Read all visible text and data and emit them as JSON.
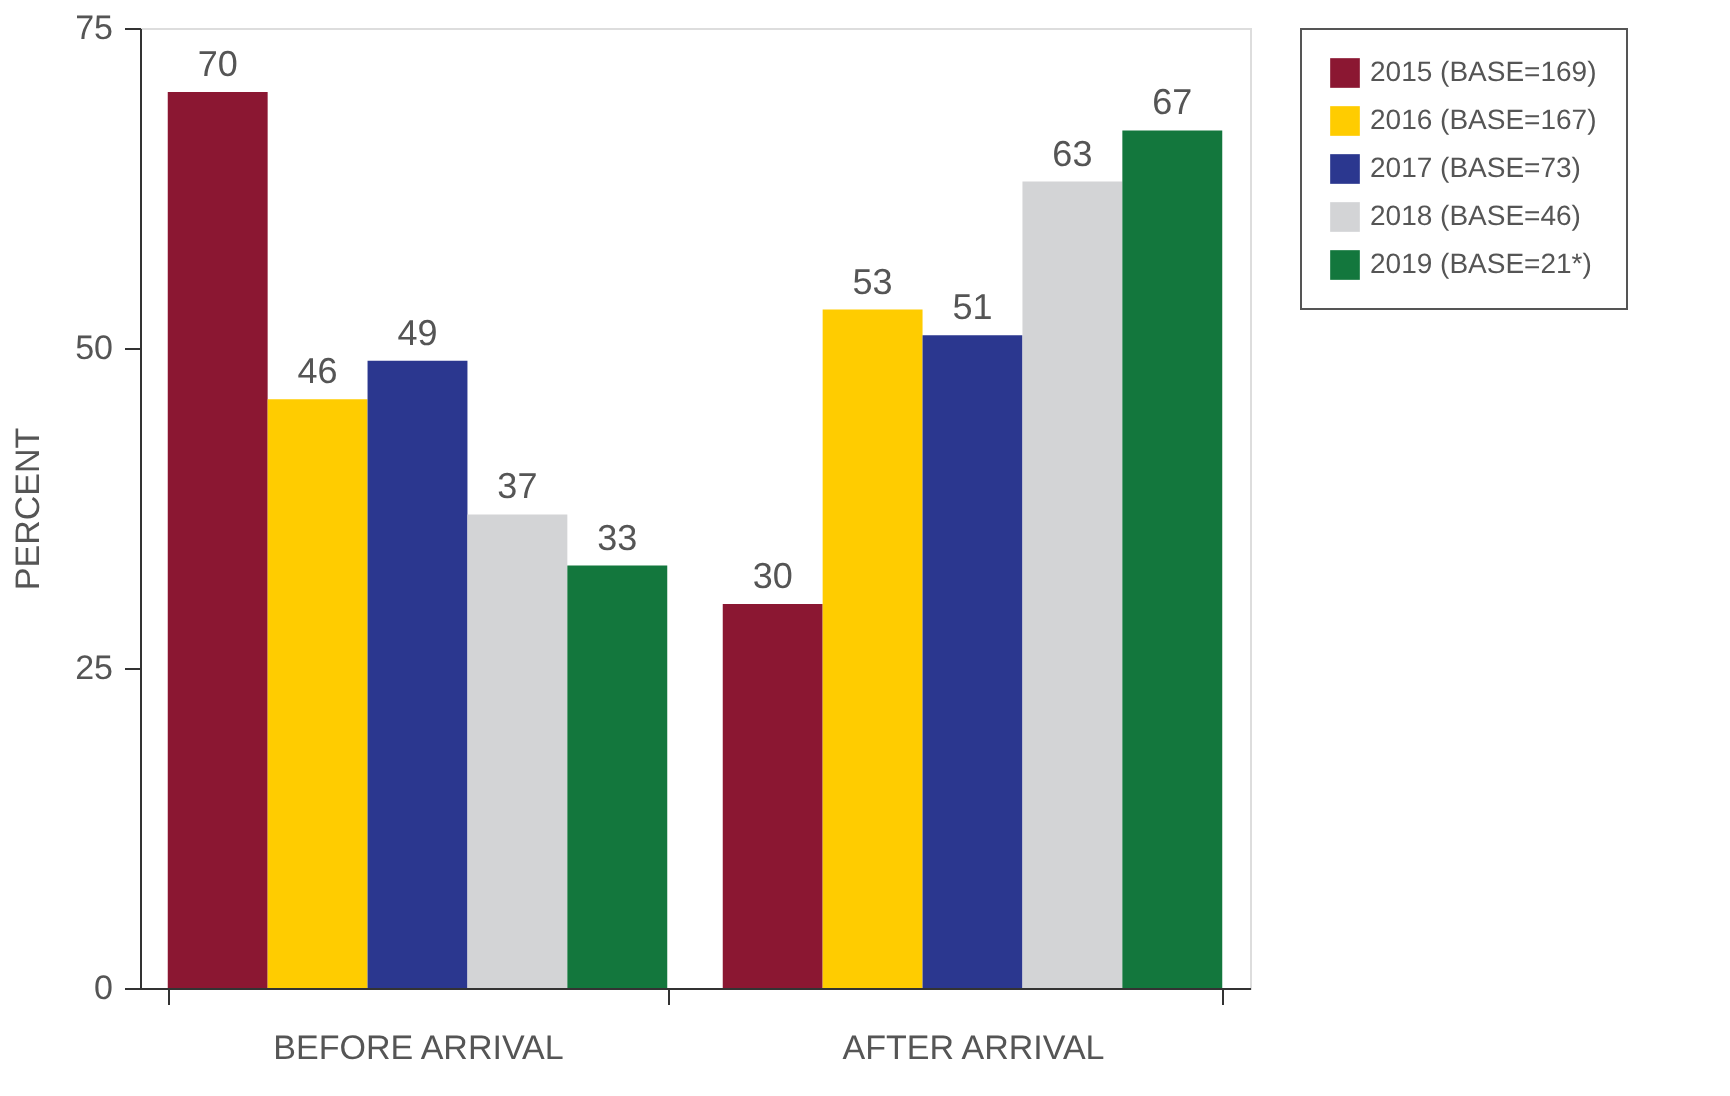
{
  "chart_data": {
    "type": "bar",
    "ylabel": "PERCENT",
    "categories": [
      "BEFORE ARRIVAL",
      "AFTER ARRIVAL"
    ],
    "series": [
      {
        "name": "2015 (BASE=169)",
        "color": "#8b1732",
        "values": [
          70,
          30
        ]
      },
      {
        "name": "2016 (BASE=167)",
        "color": "#ffcc00",
        "values": [
          46,
          53
        ]
      },
      {
        "name": "2017 (BASE=73)",
        "color": "#2b378f",
        "values": [
          49,
          51
        ]
      },
      {
        "name": "2018 (BASE=46)",
        "color": "#d3d4d6",
        "values": [
          37,
          63
        ]
      },
      {
        "name": "2019 (BASE=21*)",
        "color": "#13773d",
        "values": [
          33,
          67
        ]
      }
    ],
    "ylim": [
      0,
      75
    ],
    "yticks": [
      0,
      25,
      50,
      75
    ],
    "grid": false,
    "legend": "top right",
    "data_labels": true
  }
}
